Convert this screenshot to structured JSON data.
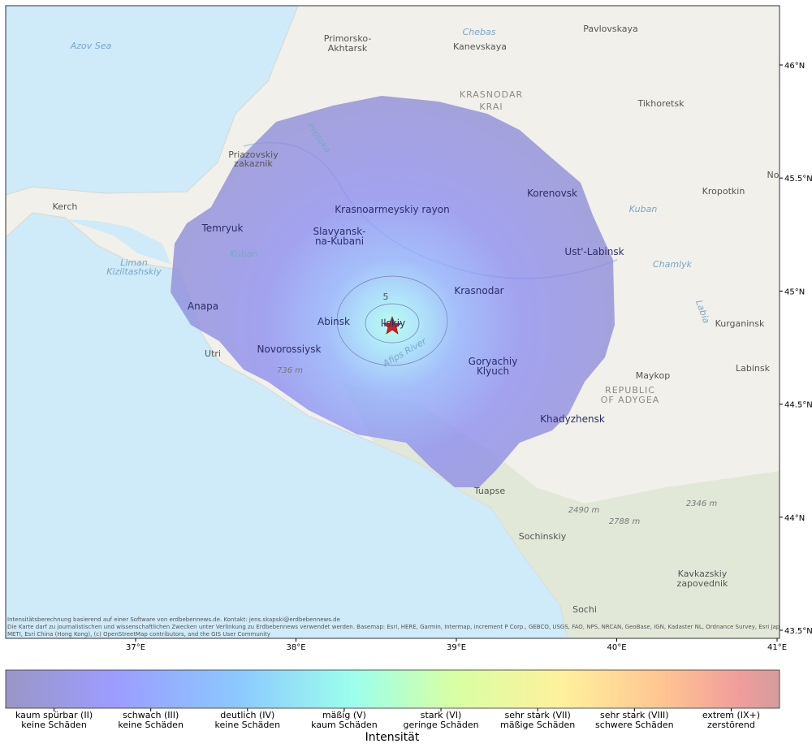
{
  "map": {
    "places": [
      "Azov Sea",
      [
        "Primorsko-",
        "Akhtarsk"
      ],
      "Chebas",
      "Kanevskaya",
      "Pavlovskaya",
      [
        "KRASNODAR",
        "KRAI"
      ],
      "Tikhoretsk",
      [
        "Priazovskiy",
        "zakaznik"
      ],
      "Protoka",
      "Kerch",
      "Krasnoarmeyskiy rayon",
      "Korenovsk",
      "Kropotkin",
      "Kuban",
      "Temryuk",
      [
        "Slavyansk-",
        "na-Kubani"
      ],
      "Kuban",
      [
        "Liman",
        "Kiziltashskiy"
      ],
      "Ust'-Labinsk",
      "Chamlyk",
      "Krasnodar",
      "Anapa",
      "Abinsk",
      "Ilskiy",
      "Kurganinsk",
      "Novorossiysk",
      "Afips River",
      [
        "Goryachiy",
        "Klyuch"
      ],
      "Labinsk",
      "736 m",
      "Maykop",
      [
        "REPUBLIC",
        "OF ADYGEA"
      ],
      "Khadyzhensk",
      "Utri",
      "Tuapse",
      "2490 m",
      "2788 m",
      "2346 m",
      "Sochinskiy",
      [
        "Kavkazskiy",
        "zapovednik"
      ],
      "Sochi",
      "No",
      "Labia"
    ],
    "contour_label": "5"
  },
  "axes": {
    "x_ticks": [
      "37°E",
      "38°E",
      "39°E",
      "40°E",
      "41°E"
    ],
    "y_ticks": [
      "46°N",
      "45.5°N",
      "45°N",
      "44.5°N",
      "44°N",
      "43.5°N"
    ]
  },
  "attribution": [
    "Intensitätsberechnung basierend auf einer Software von erdbebennews.de. Kontakt: jens.skapski@erdbebennews.de",
    "Die Karte darf zu journalistischen und wissenschaftlichen Zwecken unter Verlinkung zu Erdbebennews verwendet werden. Basemap: Esri, HERE, Garmin, Intermap, increment P Corp., GEBCO, USGS, FAO, NPS, NRCAN, GeoBase, IGN, Kadaster NL, Ordnance Survey, Esri Japan,",
    "METI, Esri China (Hong Kong), (c) OpenStreetMap contributors, and the GIS User Community"
  ],
  "legend": {
    "title": "Intensität",
    "classes": [
      {
        "name": "kaum spürbar (II)",
        "description": "keine Schäden"
      },
      {
        "name": "schwach (III)",
        "description": "keine Schäden"
      },
      {
        "name": "deutlich (IV)",
        "description": "keine Schäden"
      },
      {
        "name": "mäßig (V)",
        "description": "kaum Schäden"
      },
      {
        "name": "stark (VI)",
        "description": "geringe Schäden"
      },
      {
        "name": "sehr stark (VII)",
        "description": "mäßige Schäden"
      },
      {
        "name": "sehr stark (VIII)",
        "description": "schwere Schäden"
      },
      {
        "name": "extrem (IX+)",
        "description": "zerstörend"
      }
    ]
  }
}
